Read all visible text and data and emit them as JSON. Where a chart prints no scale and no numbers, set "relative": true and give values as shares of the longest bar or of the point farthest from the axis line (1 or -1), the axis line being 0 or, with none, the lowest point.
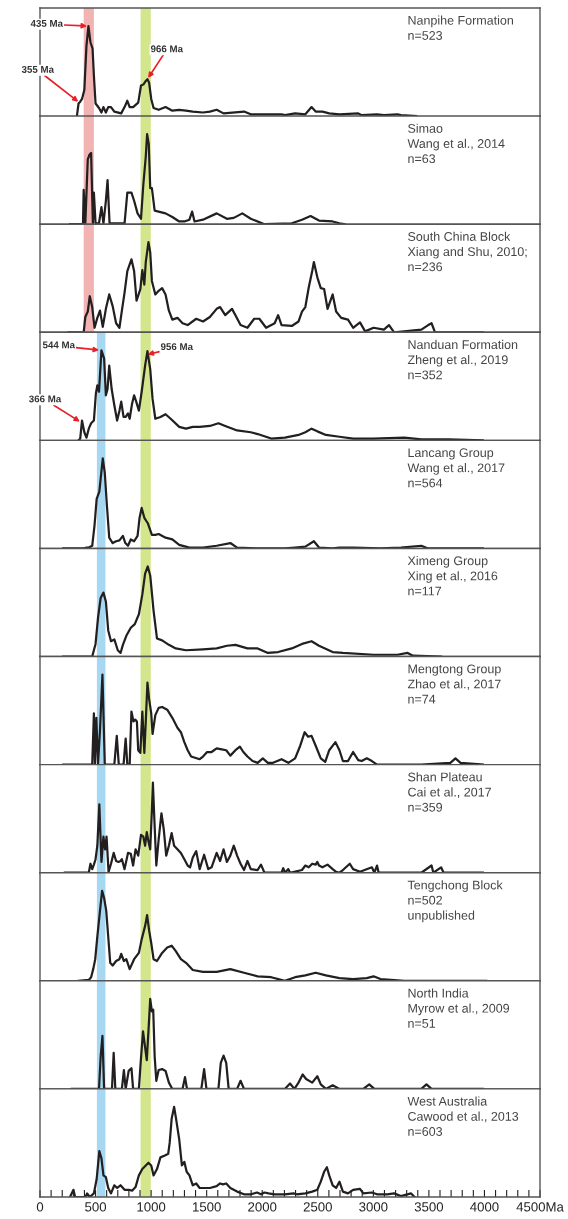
{
  "chart_data": [
    {
      "type": "line",
      "relative": true,
      "xlim": [
        0,
        4500
      ],
      "tick_labels": false,
      "annotations": [
        "Nanpihe Formation",
        "n=523",
        {
          "text": "435 Ma",
          "x": 436,
          "y": 1
        },
        {
          "text": "355 Ma",
          "x": 355,
          "y": 0.15
        },
        {
          "text": "966 Ma",
          "x": 966,
          "y": 0.41
        }
      ],
      "bands": [
        {
          "axis": "x",
          "from": 393,
          "to": 485,
          "color": "#f2b3b3"
        },
        {
          "axis": "x",
          "from": 905,
          "to": 997,
          "color": "#d4e68c"
        }
      ],
      "series": [
        {
          "type": "line",
          "color": "#231f20",
          "x": [
            332,
            347,
            362,
            378,
            399,
            418,
            436,
            454,
            473,
            485,
            500,
            531,
            553,
            571,
            593,
            614,
            639,
            669,
            731,
            761,
            786,
            807,
            838,
            884,
            909,
            930,
            952,
            967,
            982,
            1001,
            1022,
            1068,
            1130,
            1191,
            1253,
            1314,
            1375,
            1467,
            1529,
            1590,
            1652,
            1836,
            1897,
            2020,
            2174,
            2204,
            2296,
            2388,
            2444,
            2481,
            2542,
            2603,
            2695,
            2864,
            2895,
            3033,
            3095,
            3217,
            3248,
            3386
          ],
          "values": [
            0,
            0.14,
            0.16,
            0.19,
            0.29,
            0.78,
            1,
            0.82,
            0.75,
            0.45,
            0.14,
            0.09,
            0.04,
            0.1,
            0.04,
            0.1,
            0.1,
            0.05,
            0.03,
            0.1,
            0.17,
            0.1,
            0.1,
            0.15,
            0.34,
            0.35,
            0.39,
            0.41,
            0.37,
            0.19,
            0.09,
            0.07,
            0.1,
            0.06,
            0.07,
            0.06,
            0.05,
            0.04,
            0.05,
            0.07,
            0.03,
            0.05,
            0.02,
            0.02,
            0.02,
            0.01,
            0.03,
            0.02,
            0.1,
            0.05,
            0.05,
            0.03,
            0.02,
            0.03,
            0.01,
            0.02,
            0.01,
            0.02,
            0.01,
            0
          ]
        }
      ]
    },
    {
      "type": "line",
      "relative": true,
      "xlim": [
        0,
        4500
      ],
      "tick_labels": false,
      "annotations": [
        "Simao",
        "Wang et al., 2014",
        "n=63"
      ],
      "bands": [
        {
          "axis": "x",
          "from": 393,
          "to": 485,
          "color": "#f2b3b3"
        },
        {
          "axis": "x",
          "from": 905,
          "to": 997,
          "color": "#d4e68c"
        }
      ],
      "series": [
        {
          "type": "line",
          "color": "#231f20",
          "x": [
            270,
            387,
            393,
            408,
            430,
            445,
            460,
            476,
            485,
            500,
            531,
            553,
            571,
            593,
            608,
            626,
            761,
            786,
            823,
            847,
            878,
            909,
            930,
            952,
            964,
            979,
            992,
            1007,
            1032,
            1130,
            1191,
            1253,
            1299,
            1345,
            1369,
            1391,
            1467,
            1590,
            1682,
            1744,
            1821,
            1897,
            2020,
            2266,
            2358,
            2435,
            2511,
            2634,
            2695,
            2741
          ],
          "values": [
            0,
            0,
            0.38,
            0.01,
            0.72,
            0.77,
            0.79,
            0.01,
            0.35,
            0.01,
            0.01,
            0.19,
            0.01,
            0.26,
            0.49,
            0.01,
            0.01,
            0.35,
            0.35,
            0.26,
            0.12,
            0.06,
            0.44,
            0.75,
            1,
            0.89,
            0.4,
            0.4,
            0.15,
            0.12,
            0.08,
            0.03,
            0.03,
            0.05,
            0.14,
            0.03,
            0.05,
            0.12,
            0.06,
            0.07,
            0.12,
            0.06,
            0,
            0.01,
            0.05,
            0.09,
            0.04,
            0.03,
            0.01,
            0
          ]
        }
      ]
    },
    {
      "type": "line",
      "relative": true,
      "xlim": [
        0,
        4500
      ],
      "tick_labels": false,
      "annotations": [
        "South China Block",
        "Xiang and Shu, 2010;",
        "n=236"
      ],
      "bands": [
        {
          "axis": "x",
          "from": 393,
          "to": 485,
          "color": "#f2b3b3"
        },
        {
          "axis": "x",
          "from": 905,
          "to": 997,
          "color": "#d4e68c"
        }
      ],
      "series": [
        {
          "type": "line",
          "color": "#231f20",
          "x": [
            255,
            393,
            408,
            430,
            448,
            470,
            491,
            516,
            540,
            565,
            593,
            623,
            654,
            685,
            715,
            737,
            761,
            786,
            823,
            847,
            869,
            903,
            921,
            939,
            952,
            976,
            992,
            1007,
            1038,
            1068,
            1099,
            1130,
            1160,
            1191,
            1237,
            1283,
            1329,
            1406,
            1467,
            1529,
            1590,
            1621,
            1667,
            1728,
            1759,
            1805,
            1867,
            1928,
            1974,
            2035,
            2112,
            2143,
            2174,
            2266,
            2327,
            2358,
            2388,
            2419,
            2450,
            2465,
            2496,
            2527,
            2557,
            2588,
            2634,
            2665,
            2711,
            2772,
            2818,
            2880,
            2926,
            3002,
            3095,
            3141,
            3187,
            3432,
            3494,
            3524,
            3555,
            3985
          ],
          "values": [
            0,
            0,
            0.17,
            0.23,
            0.4,
            0.28,
            0.05,
            0.16,
            0.24,
            0.06,
            0.26,
            0.42,
            0.29,
            0.1,
            0.05,
            0.24,
            0.44,
            0.68,
            0.81,
            0.68,
            0.35,
            0.48,
            0.69,
            0.53,
            0.78,
            1,
            0.89,
            0.57,
            0.42,
            0.46,
            0.49,
            0.42,
            0.24,
            0.14,
            0.16,
            0.1,
            0.08,
            0.15,
            0.12,
            0.17,
            0.26,
            0.28,
            0.19,
            0.26,
            0.19,
            0.08,
            0.05,
            0.15,
            0.15,
            0.05,
            0.1,
            0.19,
            0.08,
            0.07,
            0.12,
            0.23,
            0.28,
            0.5,
            0.68,
            0.78,
            0.61,
            0.49,
            0.48,
            0.26,
            0.42,
            0.23,
            0.16,
            0.14,
            0.05,
            0.11,
            0.01,
            0.05,
            0.03,
            0.08,
            0,
            0.03,
            0.08,
            0.1,
            0,
            0
          ]
        }
      ]
    },
    {
      "type": "line",
      "relative": true,
      "xlim": [
        0,
        4500
      ],
      "tick_labels": false,
      "annotations": [
        "Nanduan Formation",
        "Zheng et al., 2019",
        "n=352",
        {
          "text": "544 Ma",
          "x": 544,
          "y": 1
        },
        {
          "text": "956 Ma",
          "x": 956,
          "y": 0.95
        },
        {
          "text": "366 Ma",
          "x": 370,
          "y": 0.2
        }
      ],
      "bands": [
        {
          "axis": "x",
          "from": 512,
          "to": 589,
          "color": "#a6d8f2"
        },
        {
          "axis": "x",
          "from": 905,
          "to": 997,
          "color": "#d4e68c"
        }
      ],
      "series": [
        {
          "type": "line",
          "color": "#231f20",
          "x": [
            347,
            362,
            378,
            399,
            418,
            439,
            460,
            485,
            503,
            516,
            531,
            553,
            577,
            593,
            608,
            623,
            645,
            669,
            694,
            715,
            731,
            752,
            771,
            792,
            807,
            829,
            847,
            866,
            890,
            915,
            946,
            967,
            992,
            1013,
            1038,
            1084,
            1130,
            1176,
            1253,
            1314,
            1375,
            1437,
            1529,
            1606,
            1667,
            1774,
            1897,
            1959,
            2081,
            2204,
            2327,
            2388,
            2444,
            2496,
            2573,
            2695,
            2818,
            3002,
            3279,
            3432,
            3678,
            3985
          ],
          "values": [
            0,
            0.02,
            0.22,
            0.09,
            0.03,
            0.13,
            0.19,
            0.22,
            0.52,
            0.61,
            0.54,
            1,
            0.91,
            0.5,
            0.57,
            0.83,
            0.57,
            0.39,
            0.22,
            0.33,
            0.43,
            0.26,
            0.26,
            0.3,
            0.24,
            0.41,
            0.5,
            0.43,
            0.33,
            0.54,
            0.83,
            0.99,
            0.79,
            0.46,
            0.24,
            0.26,
            0.29,
            0.24,
            0.15,
            0.13,
            0.15,
            0.15,
            0.16,
            0.19,
            0.16,
            0.11,
            0.09,
            0.07,
            0.02,
            0.03,
            0.06,
            0.09,
            0.13,
            0.1,
            0.06,
            0.04,
            0.02,
            0.02,
            0.03,
            0.01,
            0.01,
            0
          ]
        }
      ]
    },
    {
      "type": "line",
      "relative": true,
      "xlim": [
        0,
        4500
      ],
      "tick_labels": false,
      "annotations": [
        "Lancang Group",
        "Wang et al., 2017",
        "n=564"
      ],
      "bands": [
        {
          "axis": "x",
          "from": 512,
          "to": 589,
          "color": "#a6d8f2"
        },
        {
          "axis": "x",
          "from": 905,
          "to": 997,
          "color": "#d4e68c"
        }
      ],
      "series": [
        {
          "type": "line",
          "color": "#231f20",
          "x": [
            209,
            393,
            418,
            439,
            470,
            491,
            510,
            534,
            565,
            583,
            602,
            623,
            654,
            685,
            715,
            746,
            768,
            792,
            817,
            847,
            878,
            896,
            915,
            939,
            970,
            1007,
            1038,
            1068,
            1130,
            1191,
            1253,
            1345,
            1467,
            1590,
            1713,
            1774,
            1959,
            2204,
            2296,
            2388,
            2465,
            2511,
            2634,
            2695,
            2818,
            3064,
            3248,
            3432,
            3494,
            3985
          ],
          "values": [
            0,
            0,
            0.01,
            0.01,
            0.03,
            0.26,
            0.55,
            0.63,
            1,
            0.84,
            0.48,
            0.12,
            0.06,
            0.08,
            0.09,
            0.14,
            0.06,
            0.03,
            0.1,
            0.08,
            0.14,
            0.34,
            0.45,
            0.34,
            0.28,
            0.15,
            0.15,
            0.16,
            0.12,
            0.1,
            0.04,
            0.01,
            0.01,
            0.03,
            0.06,
            0.01,
            0,
            0,
            0.01,
            0.02,
            0.08,
            0.01,
            0,
            0.01,
            0.01,
            0,
            0.01,
            0.03,
            0,
            0
          ]
        }
      ]
    },
    {
      "type": "line",
      "relative": true,
      "xlim": [
        0,
        4500
      ],
      "tick_labels": false,
      "annotations": [
        "Ximeng Group",
        "Xing et al., 2016",
        "n=117"
      ],
      "bands": [
        {
          "axis": "x",
          "from": 512,
          "to": 589,
          "color": "#a6d8f2"
        },
        {
          "axis": "x",
          "from": 905,
          "to": 997,
          "color": "#d4e68c"
        }
      ],
      "series": [
        {
          "type": "line",
          "color": "#231f20",
          "x": [
            209,
            470,
            500,
            522,
            546,
            571,
            593,
            614,
            639,
            669,
            700,
            725,
            746,
            777,
            817,
            853,
            890,
            921,
            946,
            970,
            992,
            1022,
            1053,
            1099,
            1160,
            1222,
            1314,
            1467,
            1590,
            1682,
            1759,
            1867,
            1959,
            2051,
            2143,
            2266,
            2358,
            2444,
            2511,
            2634,
            2726,
            3002,
            3217,
            3309,
            3356,
            3610
          ],
          "values": [
            0,
            0,
            0.14,
            0.43,
            0.65,
            0.71,
            0.61,
            0.29,
            0.17,
            0.19,
            0.07,
            0.04,
            0.13,
            0.23,
            0.32,
            0.36,
            0.47,
            0.69,
            0.92,
            1,
            0.9,
            0.51,
            0.2,
            0.18,
            0.13,
            0.09,
            0.07,
            0.08,
            0.09,
            0.12,
            0.13,
            0.09,
            0.09,
            0.04,
            0.05,
            0.09,
            0.14,
            0.17,
            0.12,
            0.05,
            0.04,
            0.02,
            0.02,
            0.04,
            0.01,
            0
          ]
        }
      ]
    },
    {
      "type": "line",
      "relative": true,
      "xlim": [
        0,
        4500
      ],
      "tick_labels": false,
      "annotations": [
        "Mengtong Group",
        "Zhao et al., 2017",
        "n=74"
      ],
      "bands": [
        {
          "axis": "x",
          "from": 512,
          "to": 589,
          "color": "#a6d8f2"
        },
        {
          "axis": "x",
          "from": 905,
          "to": 997,
          "color": "#d4e68c"
        }
      ],
      "series": [
        {
          "type": "line",
          "color": "#231f20",
          "x": [
            209,
            470,
            485,
            494,
            507,
            522,
            540,
            562,
            583,
            669,
            691,
            709,
            752,
            771,
            786,
            807,
            823,
            841,
            857,
            872,
            884,
            903,
            921,
            939,
            952,
            967,
            982,
            1001,
            1013,
            1038,
            1068,
            1099,
            1145,
            1191,
            1237,
            1268,
            1299,
            1329,
            1360,
            1437,
            1467,
            1504,
            1544,
            1590,
            1636,
            1676,
            1713,
            1759,
            1799,
            1830,
            1867,
            1913,
            1959,
            2005,
            2051,
            2097,
            2174,
            2235,
            2296,
            2342,
            2382,
            2413,
            2444,
            2481,
            2527,
            2567,
            2603,
            2659,
            2695,
            2726,
            2772,
            2818,
            2864,
            2895,
            2941,
            2987,
            3033,
            3432,
            3693,
            3739,
            3785,
            3985
          ],
          "values": [
            0,
            0,
            0.57,
            0,
            0.52,
            0,
            0.38,
            1,
            0,
            0,
            0.32,
            0,
            0,
            0.29,
            0,
            0,
            0.59,
            0.48,
            0.5,
            0.48,
            0.16,
            0.13,
            0.59,
            0.13,
            0.48,
            0.91,
            0.73,
            0.57,
            0.34,
            0.55,
            0.63,
            0.64,
            0.61,
            0.52,
            0.41,
            0.36,
            0.25,
            0.16,
            0.09,
            0.06,
            0.09,
            0.14,
            0.14,
            0.18,
            0.17,
            0.16,
            0.1,
            0.16,
            0.2,
            0.14,
            0.09,
            0.04,
            0.02,
            0.07,
            0.02,
            0.02,
            0.06,
            0.02,
            0.07,
            0.21,
            0.36,
            0.31,
            0.32,
            0.21,
            0.07,
            0.03,
            0.16,
            0.25,
            0.16,
            0.04,
            0.04,
            0.14,
            0.05,
            0.04,
            0.07,
            0.04,
            0,
            0,
            0.02,
            0.07,
            0.02,
            0
          ]
        }
      ]
    },
    {
      "type": "line",
      "relative": true,
      "xlim": [
        0,
        4500
      ],
      "tick_labels": false,
      "annotations": [
        "Shan Plateau",
        "Cai et al., 2017",
        "n=359"
      ],
      "bands": [
        {
          "axis": "x",
          "from": 512,
          "to": 589,
          "color": "#a6d8f2"
        },
        {
          "axis": "x",
          "from": 905,
          "to": 997,
          "color": "#d4e68c"
        }
      ],
      "series": [
        {
          "type": "line",
          "color": "#231f20",
          "x": [
            224,
            439,
            454,
            470,
            485,
            500,
            516,
            534,
            553,
            571,
            586,
            599,
            617,
            639,
            663,
            685,
            706,
            725,
            737,
            761,
            792,
            817,
            838,
            860,
            884,
            909,
            930,
            946,
            961,
            976,
            992,
            1007,
            1016,
            1032,
            1047,
            1068,
            1093,
            1114,
            1136,
            1160,
            1185,
            1207,
            1237,
            1268,
            1299,
            1329,
            1351,
            1375,
            1406,
            1437,
            1477,
            1514,
            1544,
            1590,
            1621,
            1652,
            1682,
            1713,
            1744,
            1774,
            1805,
            1836,
            1867,
            1897,
            1959,
            1989,
            2020,
            2174,
            2189,
            2204,
            2235,
            2250,
            2358,
            2388,
            2419,
            2450,
            2481,
            2496,
            2511,
            2542,
            2588,
            2634,
            2665,
            2695,
            2726,
            2788,
            2818,
            2880,
            2987,
            3009,
            3033,
            3048,
            3432,
            3524,
            3540,
            3610,
            3632,
            3985
          ],
          "values": [
            0,
            0,
            0.1,
            0.04,
            0.09,
            0.15,
            0.3,
            0.76,
            0.12,
            0.4,
            0.26,
            0.4,
            0.01,
            0.1,
            0.22,
            0.13,
            0.12,
            0.13,
            0.15,
            0.04,
            0.22,
            0.21,
            0.08,
            0.26,
            0.19,
            0.42,
            0.4,
            0.3,
            0.45,
            0.35,
            0.26,
            0.69,
            1,
            0.51,
            0.08,
            0.37,
            0.66,
            0.48,
            0.19,
            0.3,
            0.44,
            0.3,
            0.26,
            0.22,
            0.15,
            0.08,
            0.06,
            0.17,
            0.24,
            0.04,
            0.2,
            0.04,
            0.06,
            0.22,
            0.13,
            0.26,
            0.12,
            0.19,
            0.3,
            0.19,
            0.1,
            0.03,
            0.13,
            0.04,
            0.03,
            0.09,
            0,
            0,
            0.05,
            0,
            0.04,
            0,
            0.03,
            0.08,
            0.06,
            0.1,
            0.09,
            0.12,
            0.08,
            0.06,
            0.09,
            0.04,
            0.01,
            0,
            0.03,
            0.1,
            0.04,
            0.01,
            0.06,
            0,
            0.08,
            0,
            0,
            0.08,
            0,
            0.06,
            0,
            0
          ]
        }
      ]
    },
    {
      "type": "line",
      "relative": true,
      "xlim": [
        0,
        4500
      ],
      "tick_labels": false,
      "annotations": [
        "Tengchong Block",
        "n=502",
        "unpublished"
      ],
      "bands": [
        {
          "axis": "x",
          "from": 512,
          "to": 589,
          "color": "#a6d8f2"
        },
        {
          "axis": "x",
          "from": 905,
          "to": 997,
          "color": "#d4e68c"
        }
      ],
      "series": [
        {
          "type": "line",
          "color": "#231f20",
          "x": [
            347,
            439,
            460,
            479,
            497,
            516,
            540,
            559,
            577,
            596,
            614,
            632,
            654,
            685,
            715,
            731,
            755,
            777,
            807,
            847,
            890,
            915,
            946,
            964,
            982,
            1001,
            1022,
            1053,
            1099,
            1145,
            1185,
            1222,
            1268,
            1314,
            1375,
            1467,
            1590,
            1713,
            1836,
            1959,
            2081,
            2204,
            2296,
            2388,
            2481,
            2573,
            2695,
            2818,
            2941,
            3002,
            3064,
            3279,
            3494,
            4016
          ],
          "values": [
            0,
            0.01,
            0.04,
            0.13,
            0.24,
            0.49,
            0.78,
            1,
            0.92,
            0.78,
            0.49,
            0.2,
            0.17,
            0.22,
            0.24,
            0.3,
            0.22,
            0.24,
            0.13,
            0.24,
            0.31,
            0.46,
            0.61,
            0.73,
            0.56,
            0.42,
            0.24,
            0.22,
            0.31,
            0.37,
            0.39,
            0.33,
            0.24,
            0.2,
            0.12,
            0.1,
            0.1,
            0.13,
            0.09,
            0.05,
            0.04,
            0,
            0.04,
            0.06,
            0.09,
            0.06,
            0.03,
            0.02,
            0.03,
            0.05,
            0.02,
            0,
            0,
            0
          ]
        }
      ]
    },
    {
      "type": "line",
      "relative": true,
      "xlim": [
        0,
        4500
      ],
      "tick_labels": false,
      "annotations": [
        "North India",
        "Myrow et al., 2009",
        "n=51"
      ],
      "bands": [
        {
          "axis": "x",
          "from": 512,
          "to": 589,
          "color": "#a6d8f2"
        },
        {
          "axis": "x",
          "from": 905,
          "to": 997,
          "color": "#d4e68c"
        }
      ],
      "series": [
        {
          "type": "line",
          "color": "#231f20",
          "x": [
            286,
            531,
            546,
            562,
            577,
            648,
            663,
            678,
            737,
            755,
            771,
            798,
            823,
            838,
            890,
            906,
            927,
            946,
            961,
            976,
            992,
            1007,
            1019,
            1032,
            1047,
            1068,
            1099,
            1130,
            1160,
            1191,
            1283,
            1305,
            1323,
            1452,
            1477,
            1498,
            1606,
            1627,
            1652,
            1676,
            1698,
            1774,
            1805,
            1836,
            2204,
            2250,
            2290,
            2327,
            2364,
            2395,
            2450,
            2496,
            2527,
            2573,
            2634,
            2695,
            2910,
            2963,
            3009,
            3432,
            3478,
            3524,
            3985
          ],
          "values": [
            0,
            0,
            0.36,
            0.59,
            0,
            0,
            0.4,
            0,
            0,
            0.21,
            0,
            0.2,
            0.23,
            0,
            0,
            0.29,
            0.64,
            0.46,
            0.32,
            0.64,
            1,
            0.86,
            0.88,
            0.36,
            0.09,
            0.21,
            0.22,
            0.2,
            0.07,
            0,
            0,
            0.13,
            0,
            0,
            0.22,
            0,
            0,
            0.29,
            0.37,
            0.29,
            0,
            0,
            0.09,
            0,
            0,
            0.06,
            0,
            0.07,
            0.16,
            0.11,
            0.07,
            0.14,
            0.05,
            0,
            0.04,
            0,
            0,
            0.05,
            0,
            0,
            0.05,
            0,
            0
          ]
        }
      ]
    },
    {
      "type": "line",
      "relative": true,
      "xlim": [
        0,
        4500
      ],
      "tick_labels": "x",
      "xticks": [
        0,
        {
          "value": 100,
          "label": null
        },
        {
          "value": 200,
          "label": null
        },
        {
          "value": 300,
          "label": null
        },
        {
          "value": 400,
          "label": null
        },
        500,
        {
          "value": 600,
          "label": null
        },
        {
          "value": 700,
          "label": null
        },
        {
          "value": 800,
          "label": null
        },
        {
          "value": 900,
          "label": null
        },
        1000,
        {
          "value": 1100,
          "label": null
        },
        {
          "value": 1200,
          "label": null
        },
        {
          "value": 1300,
          "label": null
        },
        {
          "value": 1400,
          "label": null
        },
        1500,
        {
          "value": 1600,
          "label": null
        },
        {
          "value": 1700,
          "label": null
        },
        {
          "value": 1800,
          "label": null
        },
        {
          "value": 1900,
          "label": null
        },
        2000,
        {
          "value": 2100,
          "label": null
        },
        {
          "value": 2200,
          "label": null
        },
        {
          "value": 2300,
          "label": null
        },
        {
          "value": 2400,
          "label": null
        },
        2500,
        {
          "value": 2600,
          "label": null
        },
        {
          "value": 2700,
          "label": null
        },
        {
          "value": 2800,
          "label": null
        },
        {
          "value": 2900,
          "label": null
        },
        3000,
        {
          "value": 3100,
          "label": null
        },
        {
          "value": 3200,
          "label": null
        },
        {
          "value": 3300,
          "label": null
        },
        {
          "value": 3400,
          "label": null
        },
        3500,
        {
          "value": 3600,
          "label": null
        },
        {
          "value": 3700,
          "label": null
        },
        {
          "value": 3800,
          "label": null
        },
        {
          "value": 3900,
          "label": null
        },
        4000,
        {
          "value": 4100,
          "label": null
        },
        {
          "value": 4200,
          "label": null
        },
        {
          "value": 4300,
          "label": null
        },
        {
          "value": 4400,
          "label": null
        },
        {
          "value": 4500,
          "label": "4500Ma"
        }
      ],
      "annotations": [
        "West Australia",
        "Cawood et al., 2013",
        "n=603"
      ],
      "bands": [
        {
          "axis": "x",
          "from": 512,
          "to": 589,
          "color": "#a6d8f2"
        },
        {
          "axis": "x",
          "from": 905,
          "to": 997,
          "color": "#d4e68c"
        }
      ],
      "series": [
        {
          "type": "line",
          "color": "#231f20",
          "x": [
            270,
            301,
            316,
            408,
            424,
            448,
            485,
            510,
            534,
            553,
            571,
            593,
            614,
            639,
            669,
            694,
            725,
            761,
            798,
            829,
            860,
            890,
            921,
            952,
            976,
            1001,
            1022,
            1053,
            1084,
            1124,
            1154,
            1167,
            1185,
            1207,
            1222,
            1253,
            1277,
            1299,
            1320,
            1345,
            1375,
            1406,
            1437,
            1529,
            1590,
            1621,
            1646,
            1676,
            1713,
            1774,
            1836,
            1897,
            1953,
            1989,
            2020,
            2057,
            2112,
            2204,
            2281,
            2312,
            2388,
            2450,
            2496,
            2527,
            2557,
            2582,
            2603,
            2634,
            2665,
            2695,
            2726,
            2772,
            2818,
            2880,
            2910,
            2987,
            3033,
            3125,
            3187,
            3248,
            3340,
            3371
          ],
          "values": [
            0,
            0.08,
            0,
            0,
            0.04,
            0,
            0.04,
            0.2,
            0.51,
            0.43,
            0.24,
            0.22,
            0.1,
            0.04,
            0.13,
            0.1,
            0.13,
            0.08,
            0.08,
            0.07,
            0.11,
            0.24,
            0.31,
            0.35,
            0.38,
            0.35,
            0.24,
            0.31,
            0.44,
            0.46,
            0.48,
            0.6,
            0.87,
            1,
            0.89,
            0.64,
            0.35,
            0.39,
            0.28,
            0.24,
            0.13,
            0.15,
            0.1,
            0.1,
            0.12,
            0.15,
            0.14,
            0.15,
            0.1,
            0.06,
            0.03,
            0.03,
            0.05,
            0.03,
            0.05,
            0.04,
            0.03,
            0.03,
            0.04,
            0.03,
            0.04,
            0.06,
            0.08,
            0.17,
            0.28,
            0.33,
            0.24,
            0.13,
            0.1,
            0.17,
            0.06,
            0.04,
            0.08,
            0.09,
            0.04,
            0.05,
            0.03,
            0.03,
            0.04,
            0.01,
            0.04,
            0
          ]
        }
      ]
    }
  ]
}
